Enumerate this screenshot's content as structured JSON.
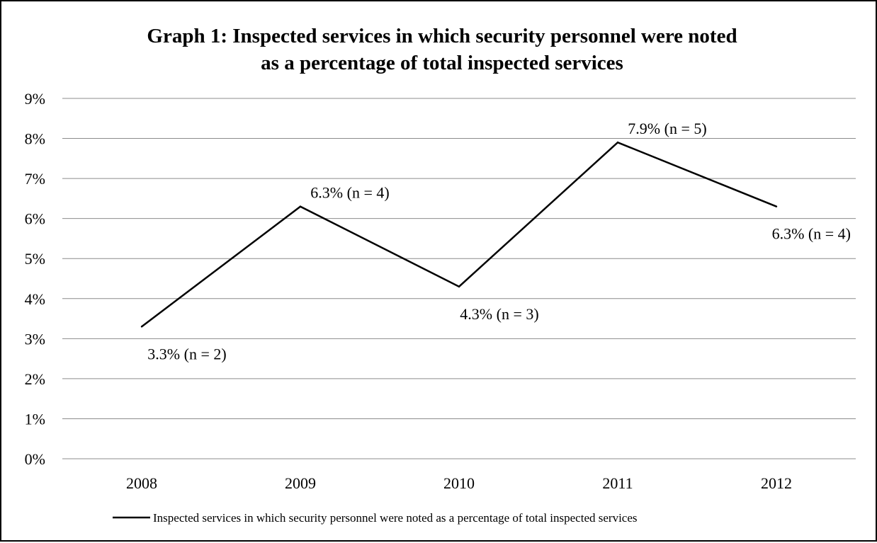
{
  "chart_data": {
    "type": "line",
    "title_lines": [
      "Graph 1: Inspected services in which security personnel were noted",
      "as a percentage of total inspected services"
    ],
    "xlabel": "",
    "ylabel": "",
    "categories": [
      "2008",
      "2009",
      "2010",
      "2011",
      "2012"
    ],
    "y_ticks": [
      "0%",
      "1%",
      "2%",
      "3%",
      "4%",
      "5%",
      "6%",
      "7%",
      "8%",
      "9%"
    ],
    "ylim": [
      0,
      9
    ],
    "y_unit": "%",
    "grid": true,
    "legend_position": "bottom",
    "series": [
      {
        "name": "Inspected services in which security personnel were noted as a percentage of total inspected services",
        "color": "#000000",
        "values": [
          3.3,
          6.3,
          4.3,
          7.9,
          6.3
        ],
        "data_labels": [
          "3.3% (n = 2)",
          "6.3% (n = 4)",
          "4.3% (n = 3)",
          "7.9% (n = 5)",
          "6.3% (n = 4)"
        ],
        "label_positions": [
          "below",
          "above",
          "below",
          "above",
          "below"
        ]
      }
    ]
  }
}
